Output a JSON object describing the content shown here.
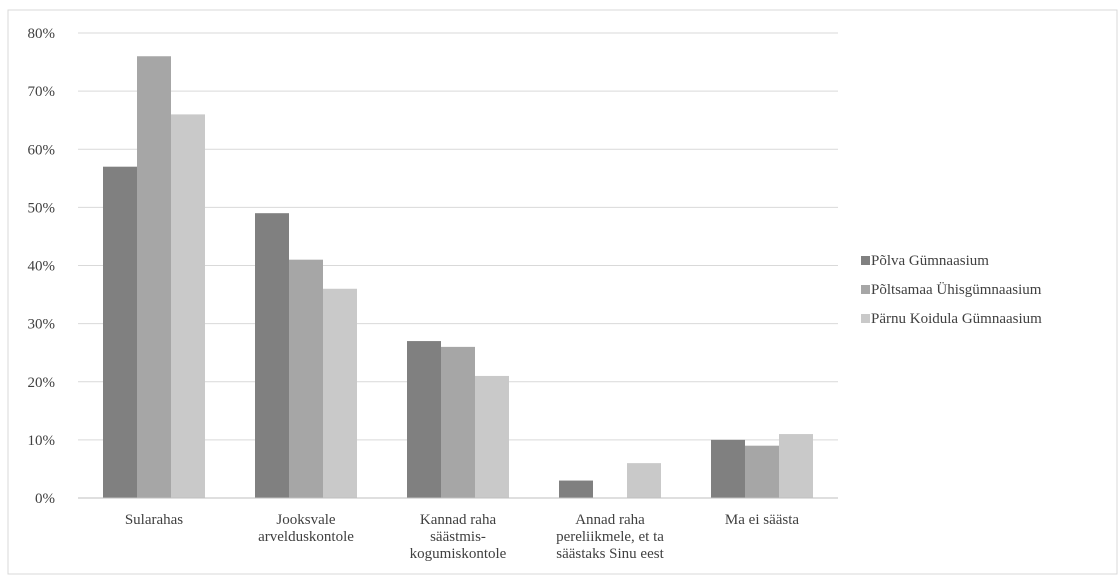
{
  "chart_data": {
    "type": "bar",
    "title": "",
    "xlabel": "",
    "ylabel": "",
    "ylim": [
      0,
      80
    ],
    "yticks": [
      0,
      10,
      20,
      30,
      40,
      50,
      60,
      70,
      80
    ],
    "ytick_labels": [
      "0%",
      "10%",
      "20%",
      "30%",
      "40%",
      "50%",
      "60%",
      "70%",
      "80%"
    ],
    "grid": true,
    "legend_position": "right",
    "categories": [
      [
        "Sularahas"
      ],
      [
        "Jooksvale",
        "arvelduskontole"
      ],
      [
        "Kannad raha",
        "säästmis-",
        "kogumiskontole"
      ],
      [
        "Annad raha",
        "pereliikmele, et ta",
        "säästaks Sinu eest"
      ],
      [
        "Ma ei säästa"
      ]
    ],
    "series": [
      {
        "name": "Põlva Gümnaasium",
        "color": "#808080",
        "values": [
          57,
          49,
          27,
          3,
          10
        ]
      },
      {
        "name": "Põltsamaa Ühisgümnaasium",
        "color": "#a6a6a6",
        "values": [
          76,
          41,
          26,
          0,
          9
        ]
      },
      {
        "name": "Pärnu Koidula Gümnaasium",
        "color": "#c9c9c9",
        "values": [
          66,
          36,
          21,
          6,
          11
        ]
      }
    ]
  }
}
